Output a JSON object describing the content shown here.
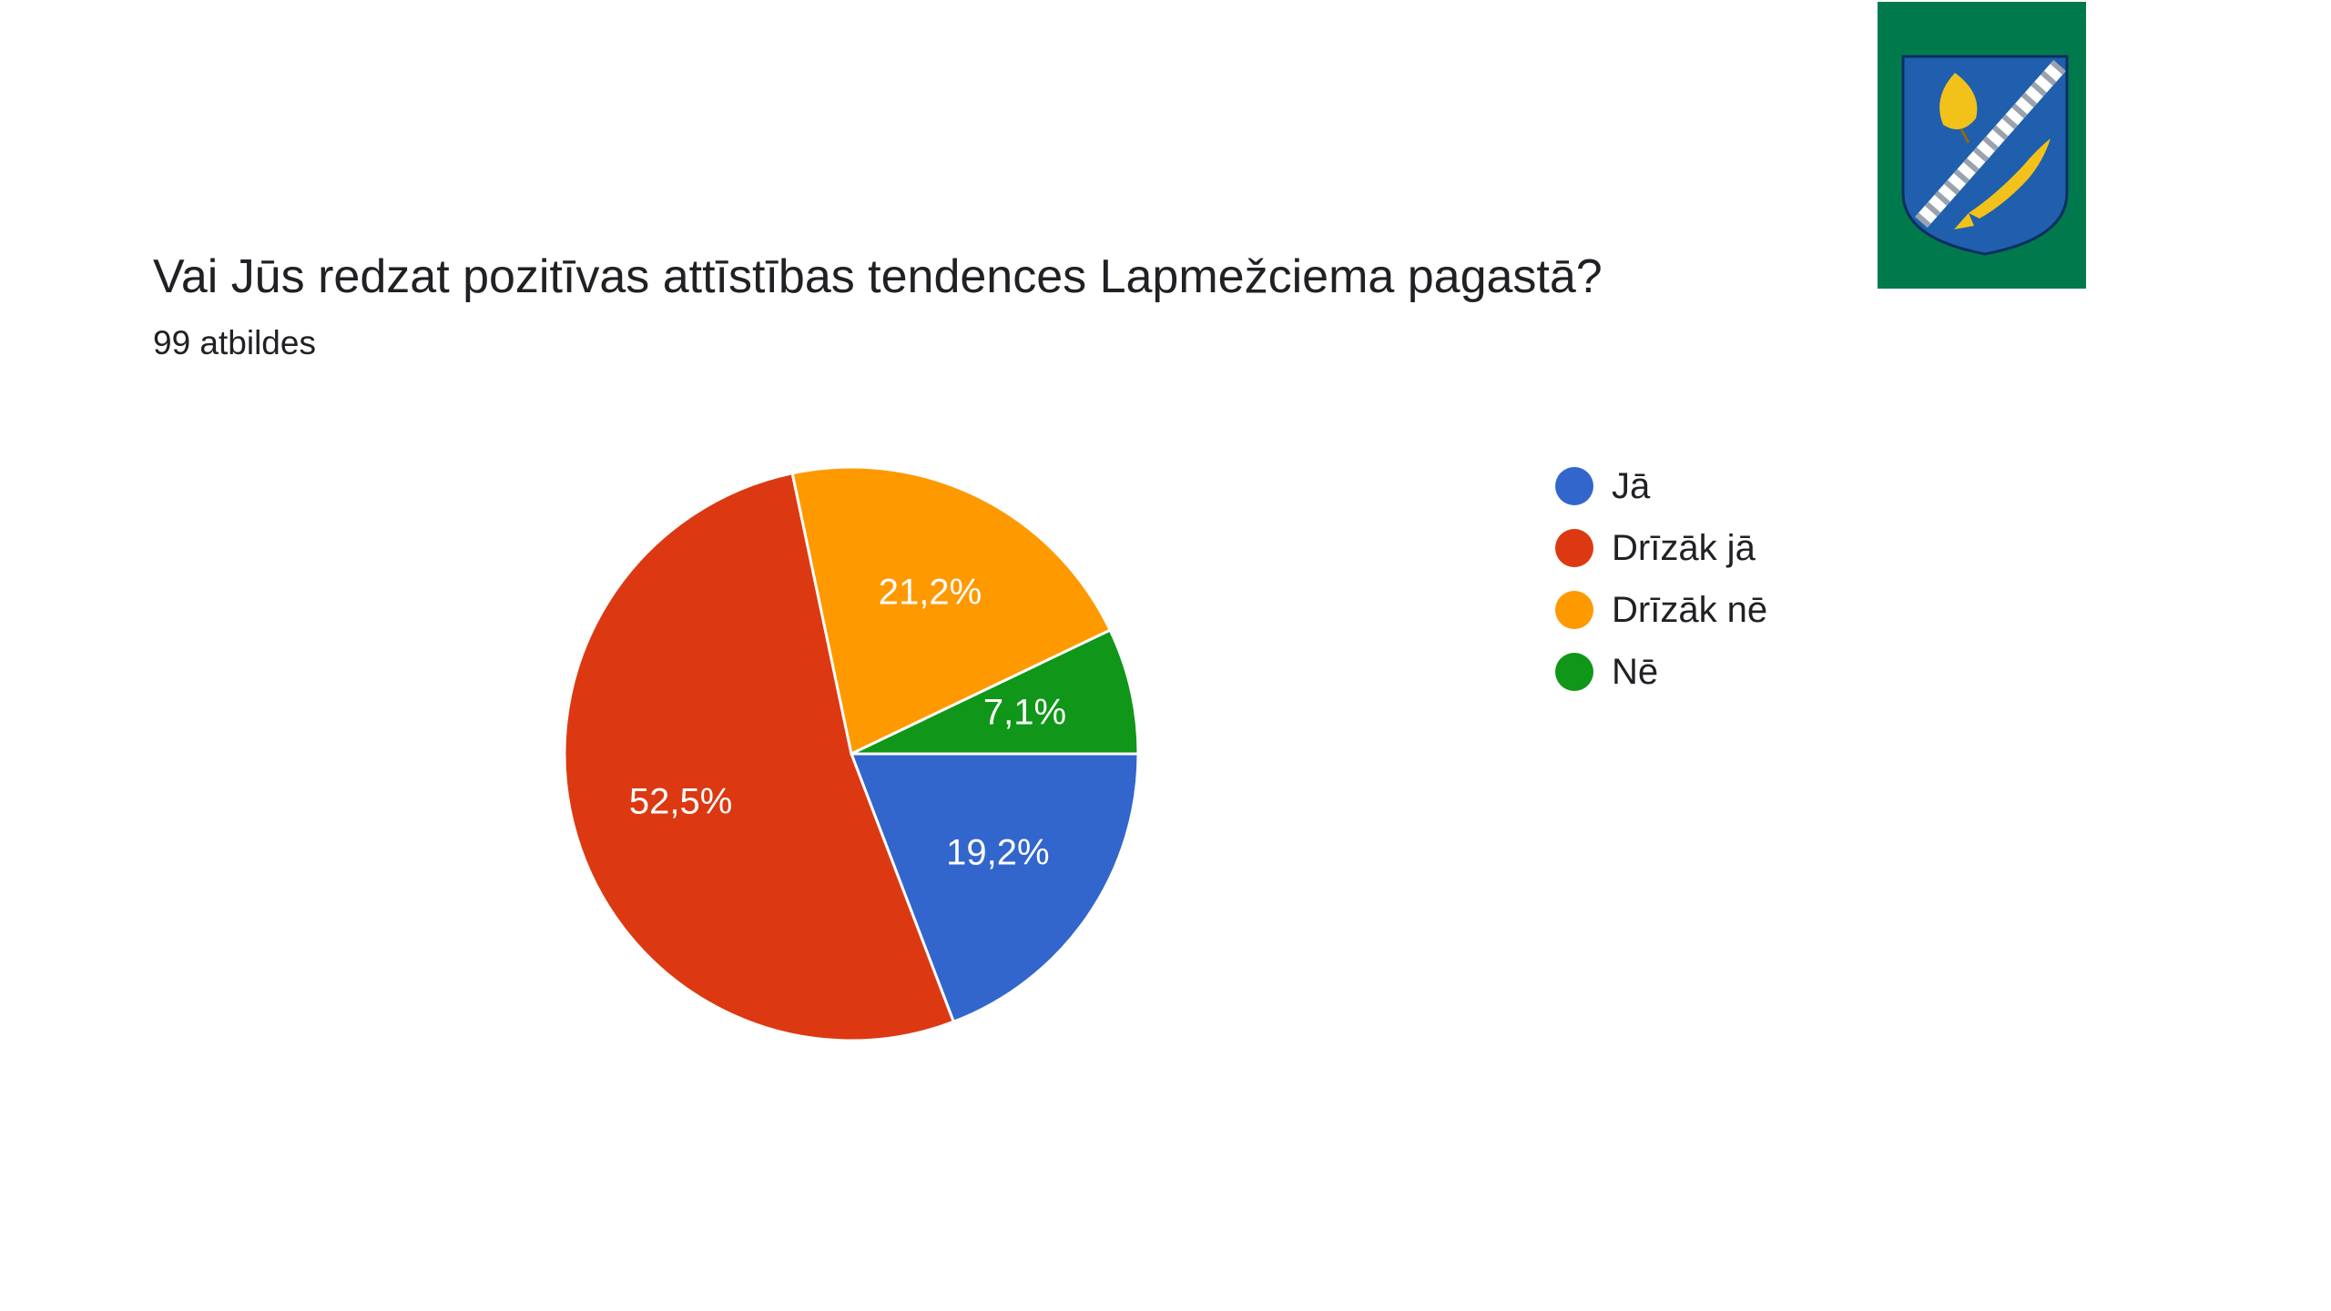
{
  "chart_data": {
    "type": "pie",
    "title": "Vai Jūs redzat pozitīvas attīstības tendences Lapmežciema pagastā?",
    "subtitle": "99 atbildes",
    "categories": [
      "Jā",
      "Drīzāk jā",
      "Drīzāk nē",
      "Nē"
    ],
    "values": [
      19.2,
      52.5,
      21.2,
      7.1
    ],
    "value_labels": [
      "19,2%",
      "52,5%",
      "21,2%",
      "7,1%"
    ],
    "colors": [
      "#3366cc",
      "#dc3912",
      "#ff9900",
      "#109618"
    ],
    "legend_position": "right"
  },
  "emblem": {
    "icon": "coat-of-arms-icon",
    "background_color": "#007a4d",
    "shield_color": "#1f5fad",
    "charge_color": "#f2c21b"
  }
}
